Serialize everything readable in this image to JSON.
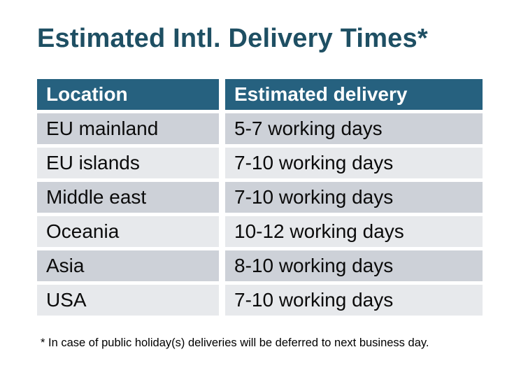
{
  "page": {
    "title": "Estimated Intl. Delivery Times*",
    "footnote": "* In case of public holiday(s) deliveries will be deferred to next business day."
  },
  "table": {
    "columns": [
      "Location",
      "Estimated delivery"
    ],
    "rows": [
      {
        "location": "EU mainland",
        "delivery": "5-7 working days"
      },
      {
        "location": "EU islands",
        "delivery": "7-10 working days"
      },
      {
        "location": "Middle east",
        "delivery": "7-10 working days"
      },
      {
        "location": "Oceania",
        "delivery": "10-12 working days"
      },
      {
        "location": "Asia",
        "delivery": "8-10 working days"
      },
      {
        "location": "USA",
        "delivery": "7-10 working days"
      }
    ]
  },
  "colors": {
    "title": "#1E4F63",
    "header_bg": "#26617F",
    "header_text": "#FFFFFF",
    "row_dark": "#CDD1D8",
    "row_light": "#E7E9EC",
    "body_text": "#0B0B0B",
    "background": "#FFFFFF"
  }
}
